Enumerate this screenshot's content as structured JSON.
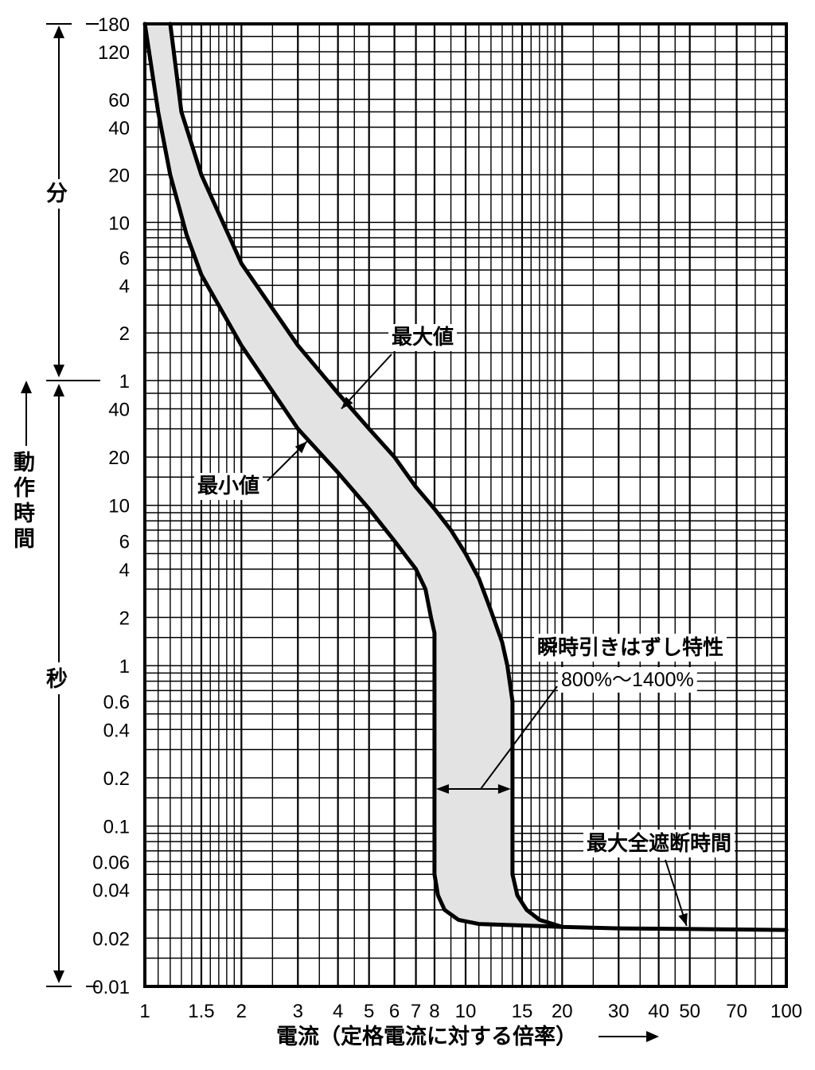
{
  "chart_data": {
    "type": "area",
    "xscale": "log",
    "xlim": [
      1,
      100
    ],
    "x_ticks": [
      1,
      1.5,
      2,
      3,
      4,
      5,
      6,
      7,
      8,
      10,
      15,
      20,
      30,
      40,
      50,
      70,
      100
    ],
    "x_tick_labels": [
      "1",
      "1.5",
      "2",
      "3",
      "4",
      "5",
      "6",
      "7",
      "8",
      "10",
      "15",
      "20",
      "30",
      "40",
      "50",
      "70",
      "100"
    ],
    "xlabel": "電流（定格電流に対する倍率）",
    "ylabel": "動作時間",
    "y_unit_minutes": "分",
    "y_unit_seconds": "秒",
    "y_scale": "log",
    "y_ticks_minutes": [
      "180",
      "120",
      "60",
      "40",
      "20",
      "10",
      "6",
      "4",
      "2",
      "1"
    ],
    "y_ticks_seconds": [
      "40",
      "20",
      "10",
      "6",
      "4",
      "2",
      "1",
      "0.6",
      "0.4",
      "0.2",
      "0.1",
      "0.06",
      "0.04",
      "0.02",
      "0.01"
    ],
    "grid": true,
    "series": [
      {
        "name": "最大値",
        "x": [
          1.2,
          1.3,
          1.5,
          2.0,
          3.0,
          4.0,
          5.0,
          6.0,
          7.0,
          8.0,
          9.0,
          10.0,
          11.0,
          12.0,
          13.0,
          13.5,
          14.0,
          14.0,
          14.0,
          14.5,
          15.5,
          17.0,
          20.0,
          30.0,
          50.0,
          100.0
        ],
        "y_seconds": [
          10800,
          3000,
          1200,
          330,
          100,
          50,
          30,
          20,
          13,
          9.5,
          7,
          5,
          3.5,
          2.2,
          1.4,
          1.0,
          0.6,
          0.2,
          0.05,
          0.037,
          0.03,
          0.026,
          0.0235,
          0.023,
          0.0228,
          0.0225
        ]
      },
      {
        "name": "最小値",
        "x": [
          1.0,
          1.1,
          1.2,
          1.35,
          1.5,
          2.0,
          3.0,
          4.0,
          5.0,
          6.0,
          7.0,
          7.5,
          7.8,
          8.0,
          8.0,
          8.0,
          8.2,
          8.6,
          9.5,
          11.0,
          15.0,
          20.0
        ],
        "y_seconds": [
          10800,
          3000,
          1200,
          500,
          280,
          100,
          30,
          16,
          9.5,
          6,
          4,
          3,
          2,
          1.6,
          0.3,
          0.05,
          0.037,
          0.03,
          0.026,
          0.0245,
          0.024,
          0.0235
        ]
      }
    ],
    "annotations": [
      {
        "text": "最大値",
        "target_x": 4.1,
        "target_y_seconds": 40
      },
      {
        "text": "最小値",
        "target_x": 3.2,
        "target_y_seconds": 25
      },
      {
        "text": "瞬時引きはずし特性",
        "subtext": "800%〜1400%",
        "range_x": [
          8,
          14
        ],
        "target_y_seconds": 0.2
      },
      {
        "text": "最大全遮断時間",
        "target_x": 50,
        "target_y_seconds": 0.0228
      }
    ]
  }
}
